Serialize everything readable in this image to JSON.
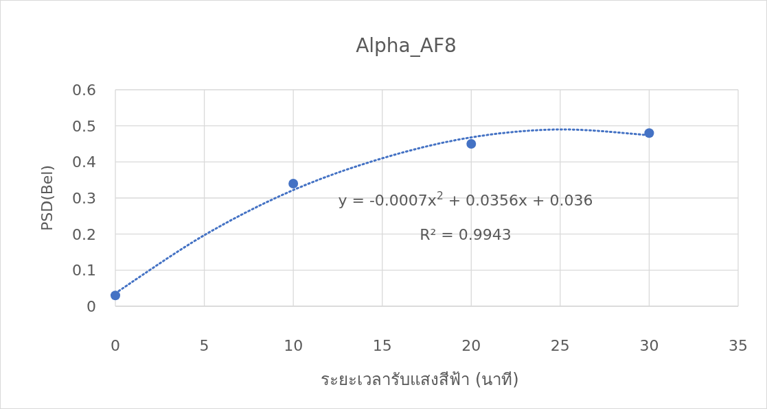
{
  "chart_data": {
    "type": "scatter",
    "title": "Alpha_AF8",
    "xlabel": "ระยะเวลารับแสงสีฟ้า (นาที)",
    "ylabel": "PSD(Bel)",
    "xlim": [
      0,
      35
    ],
    "ylim": [
      0,
      0.6
    ],
    "xticks": [
      0,
      5,
      10,
      15,
      20,
      25,
      30,
      35
    ],
    "yticks": [
      0,
      0.1,
      0.2,
      0.3,
      0.4,
      0.5,
      0.6
    ],
    "grid": true,
    "series": [
      {
        "x": [
          0,
          10,
          20,
          30
        ],
        "values": [
          0.03,
          0.34,
          0.45,
          0.48
        ],
        "color": "#4472c4",
        "marker": "circle"
      },
      {
        "type": "line",
        "x": [
          0,
          5,
          10,
          15,
          20,
          25,
          30
        ],
        "values": [
          0.036,
          0.197,
          0.322,
          0.41,
          0.468,
          0.49,
          0.474
        ],
        "color": "#4472c4",
        "line_style": "dotted",
        "marker": "none"
      }
    ],
    "annotations": [
      "y = -0.0007x$^{2}$ + 0.0356x + 0.036",
      "R² = 0.9943"
    ]
  }
}
